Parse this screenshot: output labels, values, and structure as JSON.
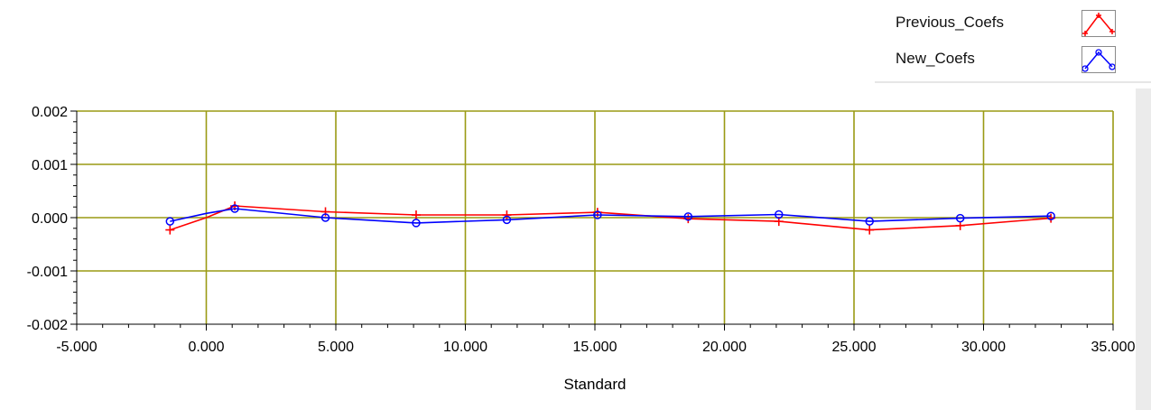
{
  "legend": {
    "items": [
      {
        "name": "Previous_Coefs",
        "color": "#ff0000",
        "marker": "plus"
      },
      {
        "name": "New_Coefs",
        "color": "#0000ff",
        "marker": "circle"
      }
    ]
  },
  "colors": {
    "grid": "#9a9a14",
    "plot_background": "#ffffff",
    "axis": "#000000"
  },
  "chart_data": {
    "type": "line",
    "title": "",
    "xlabel": "Standard",
    "ylabel": "",
    "xlim": [
      -5,
      35
    ],
    "ylim": [
      -0.002,
      0.002
    ],
    "x_ticks": [
      -5,
      0,
      5,
      10,
      15,
      20,
      25,
      30,
      35
    ],
    "x_tick_labels": [
      "-5.000",
      "0.000",
      "5.000",
      "10.000",
      "15.000",
      "20.000",
      "25.000",
      "30.000",
      "35.000"
    ],
    "y_ticks": [
      0.002,
      0.001,
      0,
      -0.001,
      -0.002
    ],
    "y_tick_labels": [
      "0.002",
      "0.001",
      "0.000",
      "-0.001",
      "-0.002"
    ],
    "grid": true,
    "legend_position": "top-right",
    "series": [
      {
        "name": "Previous_Coefs",
        "color": "#ff0000",
        "marker": "plus",
        "x": [
          -1.4,
          0.0,
          1.1,
          4.6,
          8.1,
          11.6,
          15.1,
          18.6,
          22.1,
          25.6,
          29.1,
          32.6
        ],
        "y": [
          -0.00023,
          0.0,
          0.00022,
          0.00011,
          5e-05,
          5e-05,
          0.0001,
          -2e-05,
          -7e-05,
          -0.00023,
          -0.00015,
          -1e-05
        ]
      },
      {
        "name": "New_Coefs",
        "color": "#0000ff",
        "marker": "circle",
        "x": [
          -1.4,
          0.0,
          1.1,
          4.6,
          8.1,
          11.6,
          15.1,
          18.6,
          22.1,
          25.6,
          29.1,
          32.6
        ],
        "y": [
          -7e-05,
          8e-05,
          0.00017,
          0.0,
          -0.0001,
          -4e-05,
          5e-05,
          2e-05,
          6e-05,
          -7e-05,
          -1e-05,
          3e-05
        ]
      }
    ]
  }
}
